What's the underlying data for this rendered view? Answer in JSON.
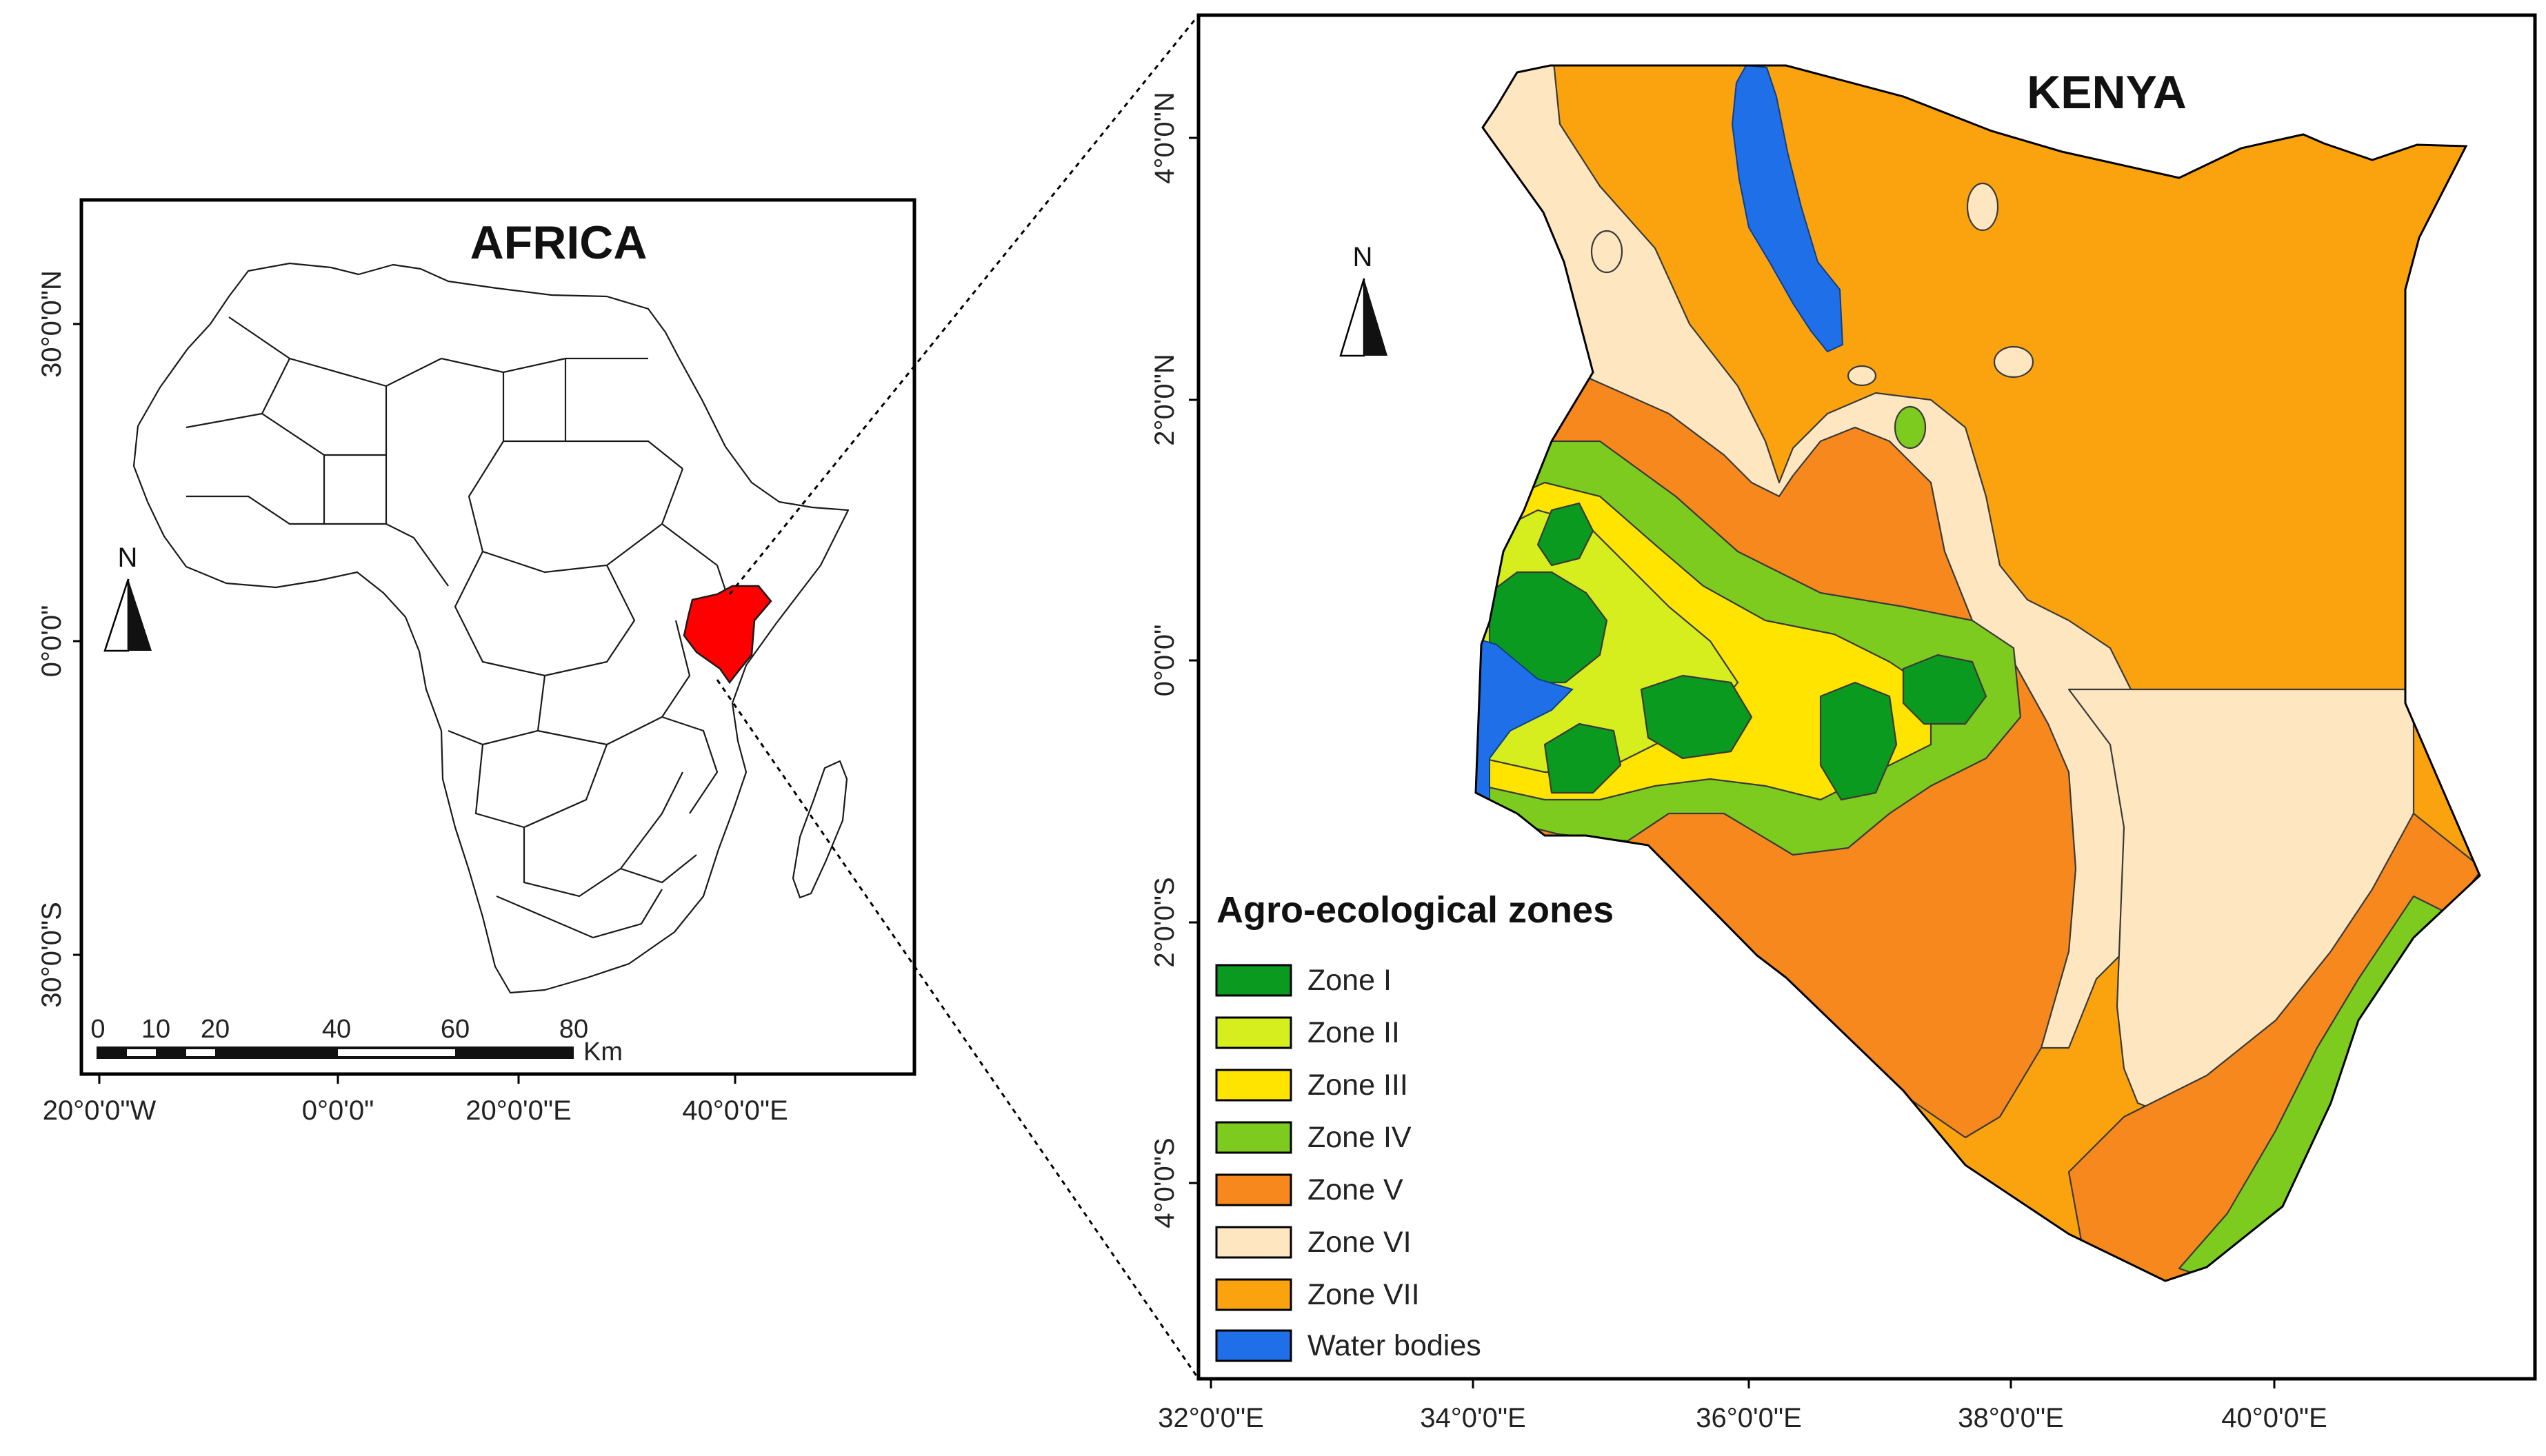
{
  "africa_map": {
    "title": "AFRICA",
    "lat_labels": [
      "30°0'0\"N",
      "0°0'0\"",
      "30°0'0\"S"
    ],
    "lon_labels": [
      "20°0'0\"W",
      "0°0'0\"",
      "20°0'0\"E",
      "40°0'0\"E"
    ],
    "north_label": "N",
    "highlight_country": "Kenya",
    "highlight_color": "#FF0000",
    "scale_bar": {
      "values": [
        "0",
        "10",
        "20",
        "40",
        "60",
        "80"
      ],
      "unit": "Km"
    }
  },
  "kenya_map": {
    "title": "KENYA",
    "lat_labels": [
      "4°0'0\"N",
      "2°0'0\"N",
      "0°0'0\"",
      "2°0'0\"S",
      "4°0'0\"S"
    ],
    "lon_labels": [
      "32°0'0\"E",
      "34°0'0\"E",
      "36°0'0\"E",
      "38°0'0\"E",
      "40°0'0\"E"
    ],
    "north_label": "N"
  },
  "legend": {
    "title": "Agro-ecological zones",
    "items": [
      {
        "label": "Zone I",
        "color": "#0A9A20"
      },
      {
        "label": "Zone II",
        "color": "#D6EE1E"
      },
      {
        "label": "Zone III",
        "color": "#FFE400"
      },
      {
        "label": "Zone IV",
        "color": "#7CCB1E"
      },
      {
        "label": "Zone V",
        "color": "#F7881E"
      },
      {
        "label": "Zone VI",
        "color": "#FDE6C0"
      },
      {
        "label": "Zone VII",
        "color": "#FBA30F"
      },
      {
        "label": "Water bodies",
        "color": "#1E6FE8"
      }
    ]
  }
}
